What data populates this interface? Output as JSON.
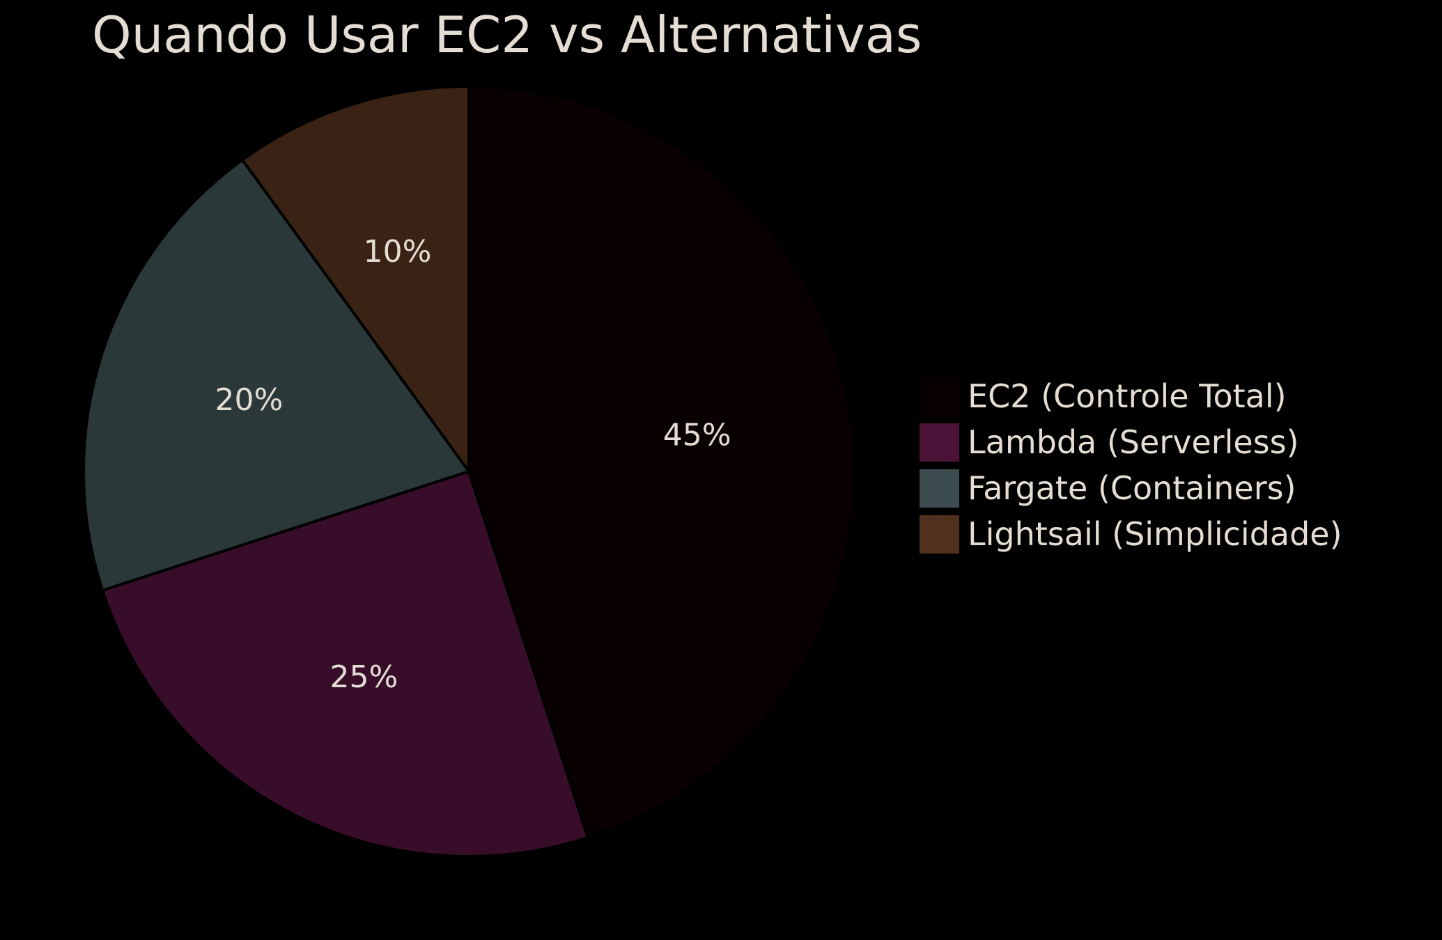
{
  "chart_data": {
    "type": "pie",
    "title": "Quando Usar EC2 vs Alternativas",
    "categories": [
      "EC2 (Controle Total)",
      "Lambda (Serverless)",
      "Fargate (Containers)",
      "Lightsail (Simplicidade)"
    ],
    "values": [
      45,
      25,
      20,
      10
    ],
    "data_labels": [
      "45%",
      "25%",
      "20%",
      "10%"
    ],
    "slice_colors": [
      "#080001",
      "#370d29",
      "#2b3839",
      "#3a2315"
    ],
    "legend_colors": [
      "#080001",
      "#4c1238",
      "#3d4d4f",
      "#50311d"
    ],
    "legend_position": "right",
    "start_angle": "12 o'clock, clockwise",
    "background": "#000000",
    "text_color": "#e4ddd4"
  }
}
